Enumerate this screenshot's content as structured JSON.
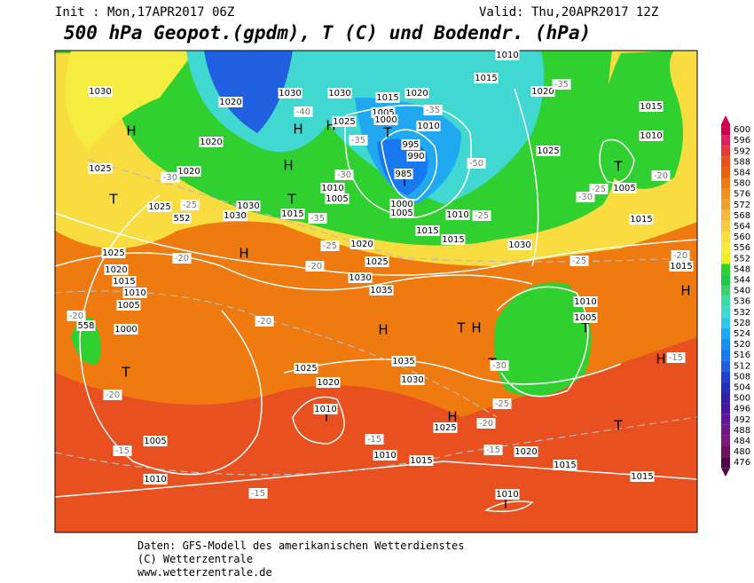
{
  "header": {
    "init": "Init : Mon,17APR2017 06Z",
    "valid": "Valid: Thu,20APR2017 12Z",
    "title": "500 hPa Geopot.(gpdm), T (C) und Bodendr. (hPa)"
  },
  "scale": {
    "values": [
      "600",
      "596",
      "592",
      "588",
      "584",
      "580",
      "576",
      "572",
      "568",
      "564",
      "560",
      "556",
      "552",
      "548",
      "544",
      "540",
      "536",
      "532",
      "528",
      "524",
      "520",
      "516",
      "512",
      "508",
      "504",
      "500",
      "496",
      "492",
      "488",
      "484",
      "480",
      "476"
    ],
    "colors": [
      "#d0004e",
      "#e02060",
      "#e83a3a",
      "#e85020",
      "#e86010",
      "#ee7a10",
      "#f09020",
      "#f0a030",
      "#f5b838",
      "#f8c840",
      "#f8dc40",
      "#f5ec40",
      "#e8f020",
      "#30d030",
      "#20c848",
      "#40d070",
      "#40d8a8",
      "#40d8d0",
      "#30c8e8",
      "#20a8f0",
      "#1890f0",
      "#1878f0",
      "#2060e0",
      "#2040d0",
      "#2030b8",
      "#3020a8",
      "#4818a0",
      "#601898",
      "#701888",
      "#801878",
      "#701060",
      "#500848"
    ]
  },
  "map_labels": [
    "H",
    "H",
    "H",
    "H",
    "H",
    "H",
    "H",
    "H",
    "H",
    "H",
    "T",
    "T",
    "T",
    "T",
    "T",
    "T",
    "T",
    "T",
    "T",
    "T",
    "T",
    "T",
    "1030",
    "1020",
    "1020",
    "1025",
    "1020",
    "1025",
    "552",
    "1030",
    "1030",
    "1015",
    "1010",
    "1005",
    "1030",
    "1030",
    "1025",
    "1015",
    "1005",
    "1000",
    "1020",
    "1010",
    "995",
    "990",
    "985",
    "1000",
    "1005",
    "1010",
    "1015",
    "1015",
    "1030",
    "1020",
    "1025",
    "1030",
    "1035",
    "1025",
    "1020",
    "1015",
    "1010",
    "1005",
    "1000",
    "558",
    "1025",
    "1020",
    "1035",
    "1030",
    "1010",
    "1025",
    "1005",
    "1010",
    "1010",
    "1015",
    "1020",
    "1015",
    "1015",
    "1010",
    "1025",
    "1020",
    "1015",
    "1010",
    "1015",
    "1010",
    "1005",
    "1015",
    "1015",
    "1010",
    "1005",
    "-35",
    "-30",
    "-25",
    "-20",
    "-20",
    "-20",
    "-20",
    "-20",
    "-15",
    "-15",
    "-15",
    "-15",
    "-20",
    "-25",
    "-30",
    "-25",
    "-20",
    "-15",
    "-20",
    "-25",
    "-30",
    "-50",
    "-35",
    "-40",
    "-35",
    "-25",
    "-25",
    "-30",
    "-35"
  ],
  "footer": [
    "Daten: GFS-Modell des amerikanischen Wetterdienstes",
    "(C) Wetterzentrale",
    "www.wetterzentrale.de"
  ]
}
